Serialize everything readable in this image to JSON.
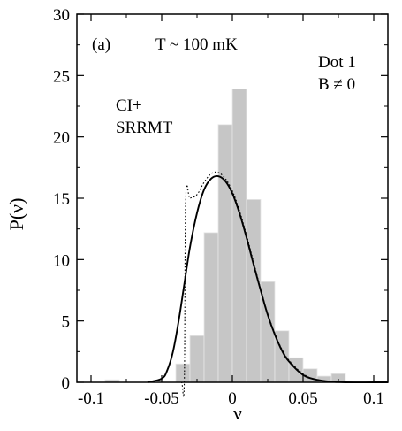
{
  "chart_data": {
    "type": "bar",
    "panel_label": "(a)",
    "xlabel": "ν",
    "ylabel": "P(ν)",
    "xlim": [
      -0.11,
      0.11
    ],
    "ylim": [
      0,
      30
    ],
    "x_ticks": [
      -0.1,
      -0.05,
      0,
      0.05,
      0.1
    ],
    "x_tick_labels": [
      "-0.1",
      "-0.05",
      "0",
      "0.05",
      "0.1"
    ],
    "y_ticks": [
      0,
      5,
      10,
      15,
      20,
      25,
      30
    ],
    "y_tick_labels": [
      "0",
      "5",
      "10",
      "15",
      "20",
      "25",
      "30"
    ],
    "annotations": {
      "temperature": "T ~ 100 mK",
      "dot": "Dot 1",
      "field": "B ≠ 0",
      "model_line1": "CI+",
      "model_line2": "SRRMT"
    },
    "histogram": {
      "bin_width": 0.01,
      "bins": [
        {
          "x0": -0.09,
          "x1": -0.08,
          "value": 0.2
        },
        {
          "x0": -0.04,
          "x1": -0.03,
          "value": 1.5
        },
        {
          "x0": -0.03,
          "x1": -0.02,
          "value": 3.8
        },
        {
          "x0": -0.02,
          "x1": -0.01,
          "value": 12.2
        },
        {
          "x0": -0.01,
          "x1": 0.0,
          "value": 21.0
        },
        {
          "x0": 0.0,
          "x1": 0.01,
          "value": 23.9
        },
        {
          "x0": 0.01,
          "x1": 0.02,
          "value": 14.9
        },
        {
          "x0": 0.02,
          "x1": 0.03,
          "value": 8.2
        },
        {
          "x0": 0.03,
          "x1": 0.04,
          "value": 4.2
        },
        {
          "x0": 0.04,
          "x1": 0.05,
          "value": 2.0
        },
        {
          "x0": 0.05,
          "x1": 0.06,
          "value": 1.1
        },
        {
          "x0": 0.06,
          "x1": 0.07,
          "value": 0.5
        },
        {
          "x0": 0.07,
          "x1": 0.08,
          "value": 0.7
        }
      ]
    },
    "series": [
      {
        "style": "solid",
        "x": [
          -0.06,
          -0.05,
          -0.046,
          -0.042,
          -0.038,
          -0.034,
          -0.03,
          -0.025,
          -0.02,
          -0.015,
          -0.01,
          -0.005,
          0.0,
          0.005,
          0.01,
          0.015,
          0.02,
          0.025,
          0.03,
          0.035,
          0.04,
          0.05,
          0.06,
          0.07,
          0.08,
          0.1,
          0.11
        ],
        "y": [
          0.0,
          0.3,
          1.0,
          2.5,
          5.0,
          8.0,
          11.0,
          13.8,
          15.7,
          16.6,
          16.8,
          16.4,
          15.4,
          13.8,
          11.8,
          9.6,
          7.5,
          5.5,
          3.9,
          2.6,
          1.7,
          0.6,
          0.2,
          0.05,
          0.0,
          0.0,
          0.0
        ]
      },
      {
        "style": "dotted",
        "x": [
          -0.06,
          -0.05,
          -0.045,
          -0.04,
          -0.036,
          -0.034,
          -0.033,
          -0.03,
          -0.025,
          -0.02,
          -0.015,
          -0.01,
          -0.005,
          0.0,
          0.005,
          0.01,
          0.015,
          0.02,
          0.025,
          0.03,
          0.035,
          0.04,
          0.05,
          0.06,
          0.08,
          0.11
        ],
        "y": [
          0.0,
          0.0,
          0.0,
          0.0,
          0.0,
          0.0,
          14.9,
          15.0,
          15.3,
          16.3,
          17.0,
          17.1,
          16.6,
          15.6,
          14.0,
          12.0,
          9.8,
          7.6,
          5.6,
          4.0,
          2.7,
          1.8,
          0.7,
          0.2,
          0.0,
          0.0
        ]
      }
    ]
  }
}
